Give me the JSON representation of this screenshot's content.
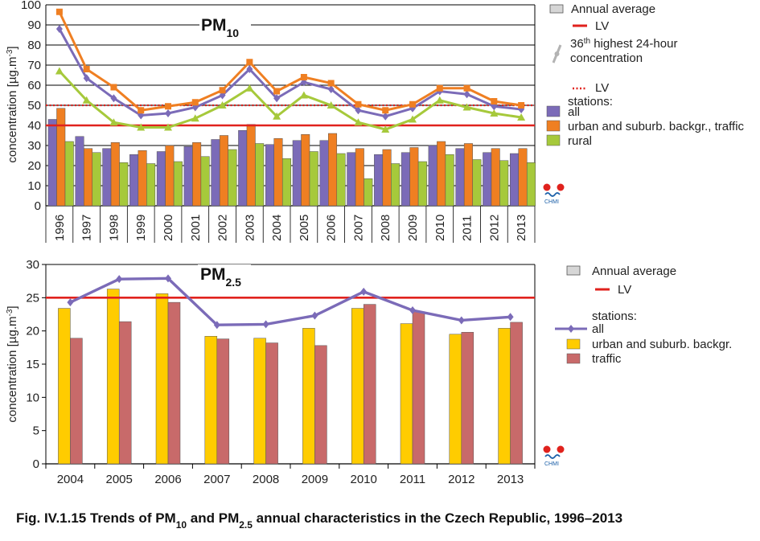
{
  "caption": {
    "text": "Fig. IV.1.15 Trends of PM",
    "sub1": "10",
    "mid": " and PM",
    "sub2": "2.5",
    "end": " annual characteristics in the Czech Republic, 1996–2013"
  },
  "logo_text": "CHMI",
  "colors": {
    "all": "#7b6bb8",
    "urban": "#ef7f22",
    "rural": "#a6c93b",
    "lv": "#e0221d",
    "urban25": "#ffcc00",
    "traffic25": "#c86a6a",
    "grid": "#000000"
  },
  "chart_data": [
    {
      "type": "bar",
      "title": "PM",
      "title_sub": "10",
      "ylabel": "concentration [µg.m",
      "ylabel_sup": "-3",
      "ylabel_end": "]",
      "ylim": [
        0,
        100
      ],
      "yticks": [
        0,
        10,
        20,
        30,
        40,
        50,
        60,
        70,
        80,
        90,
        100
      ],
      "grid": true,
      "legend_position": "right",
      "categories": [
        "1996",
        "1997",
        "1998",
        "1999",
        "2000",
        "2001",
        "2002",
        "2003",
        "2004",
        "2005",
        "2006",
        "2007",
        "2008",
        "2009",
        "2010",
        "2011",
        "2012",
        "2013"
      ],
      "legend": {
        "annual_average": "Annual average",
        "lv": "LV",
        "line36": "36",
        "line36_sup": "th",
        "line36_rest": " highest 24-hour",
        "line36_rest2": "concentration",
        "lv_dotted": "LV",
        "stations": "stations:",
        "all": "all",
        "urban": "urban and suburb. backgr., traffic",
        "rural": "rural"
      },
      "bar_series": [
        {
          "name": "all",
          "values": [
            43,
            34.5,
            28.5,
            25.5,
            27,
            29.5,
            33,
            37.5,
            30.5,
            32.5,
            32.5,
            26.5,
            25.5,
            26.5,
            30,
            28.5,
            26.5,
            26
          ]
        },
        {
          "name": "urban and suburb. backgr., traffic",
          "values": [
            48.5,
            28.5,
            31.5,
            27.5,
            30,
            31.5,
            35,
            40.5,
            33.5,
            35.5,
            36,
            28.5,
            28,
            29,
            32,
            31,
            28.5,
            28.5
          ]
        },
        {
          "name": "rural",
          "values": [
            32,
            26.5,
            21.5,
            21,
            22,
            24.5,
            28,
            31,
            23.5,
            27,
            26,
            13.5,
            21,
            22,
            25.5,
            23,
            22.5,
            21.5
          ]
        }
      ],
      "line_series": [
        {
          "name": "all",
          "values": [
            88,
            63.5,
            53.5,
            45,
            46,
            49,
            55,
            68,
            53.5,
            61.5,
            58,
            47.5,
            44.5,
            48.5,
            57,
            55.5,
            49.5,
            48
          ]
        },
        {
          "name": "urban and suburb. backgr., traffic",
          "values": [
            96.5,
            68,
            59,
            47.5,
            49.5,
            51.5,
            57.5,
            71.5,
            57,
            64,
            61,
            50.5,
            47.5,
            50.5,
            58.5,
            58.5,
            52,
            50
          ]
        },
        {
          "name": "rural",
          "values": [
            67,
            52.5,
            41.5,
            39,
            39,
            43.5,
            50,
            58.5,
            44.5,
            55,
            50,
            41.5,
            38,
            43,
            52.5,
            49,
            46,
            44
          ]
        }
      ],
      "reference_lines": [
        {
          "name": "LV annual",
          "value": 40,
          "style": "solid"
        },
        {
          "name": "LV 36th highest",
          "value": 50,
          "style": "dotted"
        }
      ]
    },
    {
      "type": "bar",
      "title": "PM",
      "title_sub": "2.5",
      "ylabel": "concentration [µg.m",
      "ylabel_sup": "-3",
      "ylabel_end": "]",
      "ylim": [
        0,
        30
      ],
      "yticks": [
        0,
        5,
        10,
        15,
        20,
        25,
        30
      ],
      "grid": false,
      "legend_position": "right",
      "categories": [
        "2004",
        "2005",
        "2006",
        "2007",
        "2008",
        "2009",
        "2010",
        "2011",
        "2012",
        "2013"
      ],
      "legend": {
        "annual_average": "Annual average",
        "lv": "LV",
        "stations": "stations:",
        "all": "all",
        "urban": "urban and suburb. backgr.",
        "traffic": "traffic"
      },
      "bar_series": [
        {
          "name": "urban and suburb. backgr.",
          "values": [
            23.4,
            26.3,
            25.6,
            19.2,
            18.9,
            20.4,
            23.4,
            21.1,
            19.5,
            20.4
          ]
        },
        {
          "name": "traffic",
          "values": [
            18.9,
            21.4,
            24.3,
            18.8,
            18.2,
            17.8,
            24,
            22.9,
            19.8,
            21.3
          ]
        }
      ],
      "line_series": [
        {
          "name": "all",
          "values": [
            24.3,
            27.8,
            27.9,
            20.9,
            21,
            22.3,
            25.9,
            23.1,
            21.6,
            22.1
          ]
        }
      ],
      "reference_lines": [
        {
          "name": "LV",
          "value": 25,
          "style": "solid"
        }
      ]
    }
  ]
}
